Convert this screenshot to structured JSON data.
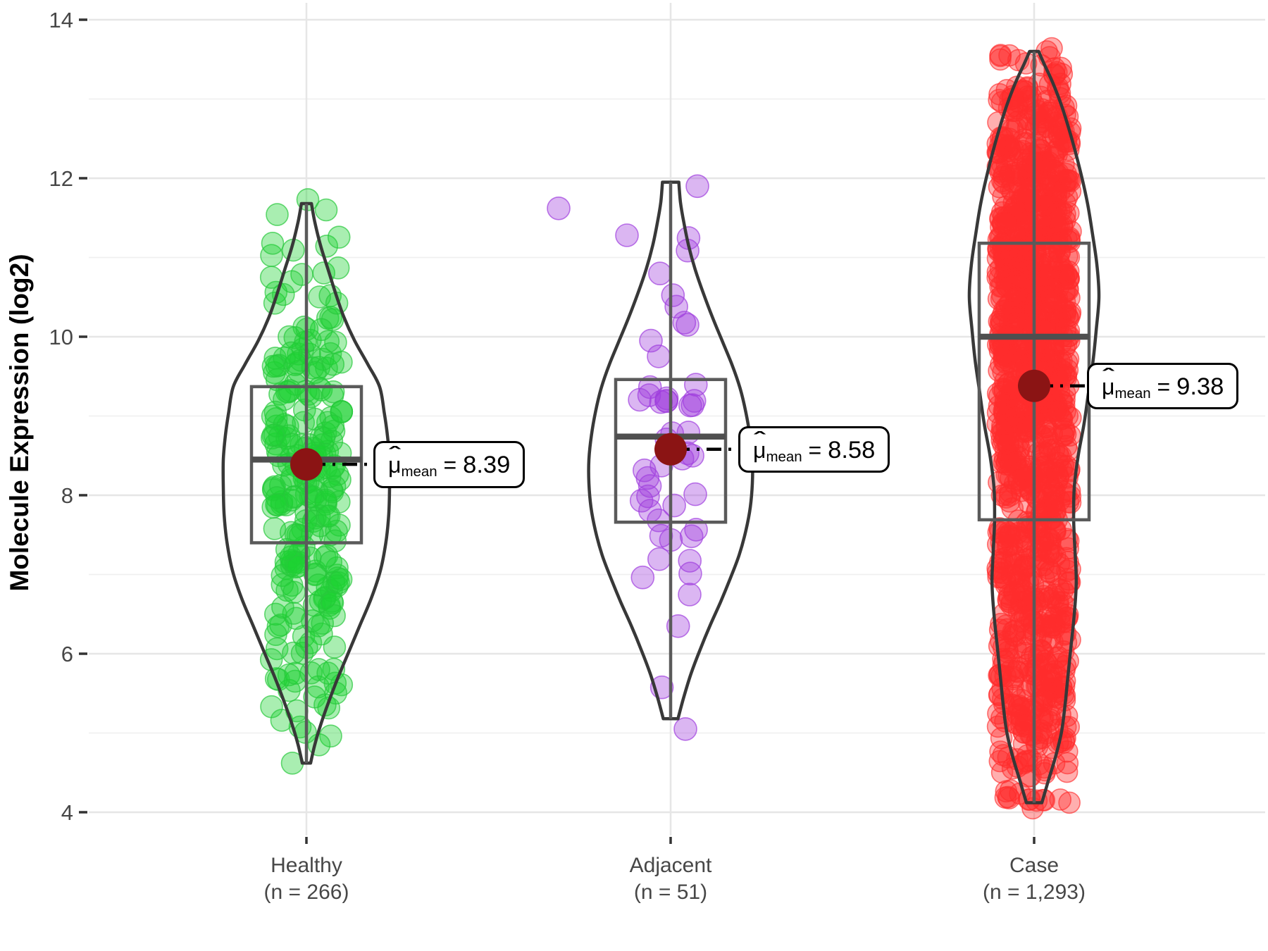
{
  "chart_data": {
    "type": "violin-box-jitter",
    "title": "",
    "ylabel": "Molecule Expression (log2)",
    "ylim": [
      3.7,
      14.1
    ],
    "y_major_ticks": [
      4,
      6,
      8,
      10,
      12,
      14
    ],
    "y_minor_ticks": [
      5,
      7,
      9,
      11,
      13
    ],
    "grid": "major+minor, vertical major at each group",
    "legend": "none",
    "mean_point_color": "#8B1414",
    "groups": [
      {
        "name": "Healthy",
        "x_label_line1": "Healthy",
        "x_label_line2": "(n = 266)",
        "n": 266,
        "mean": 8.39,
        "median": 8.45,
        "q1": 7.4,
        "q3": 9.37,
        "whisker_min": 4.62,
        "whisker_max": 11.68,
        "mean_annotation": {
          "mu": "μ",
          "hat": "ˆ",
          "subscript": "mean",
          "equals": " = ",
          "value": "8.39"
        },
        "point_fill": "rgba(30,210,50,0.38)",
        "point_stroke": "rgba(40,200,60,0.7)",
        "violin_profile": [
          [
            4.62,
            0.05
          ],
          [
            4.85,
            0.1
          ],
          [
            5.1,
            0.17
          ],
          [
            5.4,
            0.27
          ],
          [
            5.7,
            0.38
          ],
          [
            6.0,
            0.5
          ],
          [
            6.35,
            0.64
          ],
          [
            6.7,
            0.78
          ],
          [
            7.05,
            0.89
          ],
          [
            7.4,
            0.955
          ],
          [
            7.75,
            0.99
          ],
          [
            8.1,
            1.0
          ],
          [
            8.45,
            1.0
          ],
          [
            8.75,
            0.975
          ],
          [
            9.05,
            0.935
          ],
          [
            9.37,
            0.88
          ],
          [
            9.65,
            0.74
          ],
          [
            9.95,
            0.58
          ],
          [
            10.25,
            0.45
          ],
          [
            10.55,
            0.35
          ],
          [
            10.85,
            0.26
          ],
          [
            11.15,
            0.17
          ],
          [
            11.45,
            0.1
          ],
          [
            11.68,
            0.06
          ]
        ],
        "extra_points": [
          [
            -20,
            4.62
          ],
          [
            2,
            11.73
          ],
          [
            28,
            11.6
          ],
          [
            -48,
            11.18
          ]
        ]
      },
      {
        "name": "Adjacent",
        "x_label_line1": "Adjacent",
        "x_label_line2": "(n = 51)",
        "n": 51,
        "mean": 8.58,
        "median": 8.74,
        "q1": 7.66,
        "q3": 9.46,
        "whisker_min": 5.18,
        "whisker_max": 11.95,
        "mean_annotation": {
          "mu": "μ",
          "hat": "ˆ",
          "subscript": "mean",
          "equals": " = ",
          "value": "8.58"
        },
        "point_fill": "rgba(160,62,222,0.38)",
        "point_stroke": "rgba(160,62,222,0.7)",
        "violin_profile": [
          [
            5.18,
            0.09
          ],
          [
            5.45,
            0.16
          ],
          [
            5.75,
            0.25
          ],
          [
            6.05,
            0.36
          ],
          [
            6.35,
            0.48
          ],
          [
            6.65,
            0.61
          ],
          [
            6.95,
            0.73
          ],
          [
            7.25,
            0.84
          ],
          [
            7.55,
            0.92
          ],
          [
            7.85,
            0.975
          ],
          [
            8.15,
            1.0
          ],
          [
            8.45,
            1.0
          ],
          [
            8.75,
            0.97
          ],
          [
            9.05,
            0.92
          ],
          [
            9.35,
            0.85
          ],
          [
            9.65,
            0.75
          ],
          [
            9.95,
            0.63
          ],
          [
            10.25,
            0.51
          ],
          [
            10.55,
            0.4
          ],
          [
            10.85,
            0.3
          ],
          [
            11.15,
            0.22
          ],
          [
            11.45,
            0.16
          ],
          [
            11.7,
            0.12
          ],
          [
            11.95,
            0.1
          ]
        ],
        "extra_points": [
          [
            21,
            5.05
          ],
          [
            38,
            11.9
          ],
          [
            -159,
            11.62
          ],
          [
            -62,
            11.28
          ],
          [
            24,
            10.15
          ],
          [
            -28,
            9.95
          ]
        ]
      },
      {
        "name": "Case",
        "x_label_line1": "Case",
        "x_label_line2": "(n = 1,293)",
        "n": 1293,
        "mean": 9.38,
        "median": 10.0,
        "q1": 7.69,
        "q3": 11.18,
        "whisker_min": 4.12,
        "whisker_max": 13.6,
        "mean_annotation": {
          "mu": "μ",
          "hat": "ˆ",
          "subscript": "mean",
          "equals": " = ",
          "value": "9.38"
        },
        "point_fill": "rgba(255,45,45,0.38)",
        "point_stroke": "rgba(255,45,45,0.65)",
        "violin_profile": [
          [
            4.12,
            0.12
          ],
          [
            4.4,
            0.22
          ],
          [
            4.7,
            0.33
          ],
          [
            5.0,
            0.42
          ],
          [
            5.3,
            0.47
          ],
          [
            5.7,
            0.52
          ],
          [
            6.1,
            0.57
          ],
          [
            6.5,
            0.62
          ],
          [
            6.9,
            0.65
          ],
          [
            7.3,
            0.63
          ],
          [
            7.7,
            0.61
          ],
          [
            8.1,
            0.62
          ],
          [
            8.5,
            0.68
          ],
          [
            8.9,
            0.77
          ],
          [
            9.3,
            0.84
          ],
          [
            9.7,
            0.91
          ],
          [
            10.1,
            0.96
          ],
          [
            10.5,
            1.0
          ],
          [
            10.9,
            0.97
          ],
          [
            11.3,
            0.9
          ],
          [
            11.7,
            0.82
          ],
          [
            12.1,
            0.71
          ],
          [
            12.5,
            0.58
          ],
          [
            12.9,
            0.43
          ],
          [
            13.2,
            0.29
          ],
          [
            13.45,
            0.15
          ],
          [
            13.6,
            0.07
          ]
        ],
        "extra_points": [
          [
            -2,
            4.05
          ],
          [
            25,
            13.64
          ],
          [
            -35,
            13.55
          ],
          [
            18,
            13.6
          ]
        ]
      }
    ]
  }
}
